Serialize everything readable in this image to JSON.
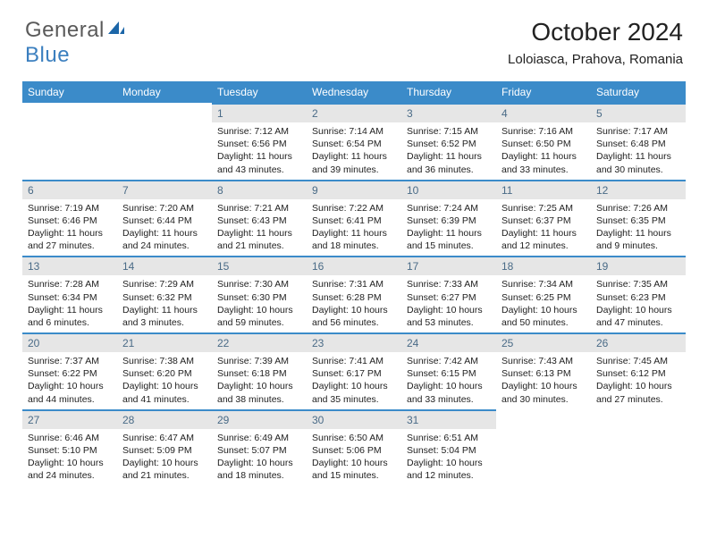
{
  "logo": {
    "part1": "General",
    "part2": "Blue"
  },
  "title": "October 2024",
  "location": "Loloiasca, Prahova, Romania",
  "headers": [
    "Sunday",
    "Monday",
    "Tuesday",
    "Wednesday",
    "Thursday",
    "Friday",
    "Saturday"
  ],
  "colors": {
    "header_bg": "#3b8bc9",
    "header_text": "#ffffff",
    "daynum_bg": "#e6e6e6",
    "daynum_border": "#3b8bc9",
    "daynum_text": "#4a6b87",
    "text": "#222222",
    "logo_gray": "#5a5a5a",
    "logo_blue": "#3b7fbf"
  },
  "weeks": [
    [
      null,
      null,
      {
        "n": "1",
        "sr": "Sunrise: 7:12 AM",
        "ss": "Sunset: 6:56 PM",
        "dl": "Daylight: 11 hours and 43 minutes."
      },
      {
        "n": "2",
        "sr": "Sunrise: 7:14 AM",
        "ss": "Sunset: 6:54 PM",
        "dl": "Daylight: 11 hours and 39 minutes."
      },
      {
        "n": "3",
        "sr": "Sunrise: 7:15 AM",
        "ss": "Sunset: 6:52 PM",
        "dl": "Daylight: 11 hours and 36 minutes."
      },
      {
        "n": "4",
        "sr": "Sunrise: 7:16 AM",
        "ss": "Sunset: 6:50 PM",
        "dl": "Daylight: 11 hours and 33 minutes."
      },
      {
        "n": "5",
        "sr": "Sunrise: 7:17 AM",
        "ss": "Sunset: 6:48 PM",
        "dl": "Daylight: 11 hours and 30 minutes."
      }
    ],
    [
      {
        "n": "6",
        "sr": "Sunrise: 7:19 AM",
        "ss": "Sunset: 6:46 PM",
        "dl": "Daylight: 11 hours and 27 minutes."
      },
      {
        "n": "7",
        "sr": "Sunrise: 7:20 AM",
        "ss": "Sunset: 6:44 PM",
        "dl": "Daylight: 11 hours and 24 minutes."
      },
      {
        "n": "8",
        "sr": "Sunrise: 7:21 AM",
        "ss": "Sunset: 6:43 PM",
        "dl": "Daylight: 11 hours and 21 minutes."
      },
      {
        "n": "9",
        "sr": "Sunrise: 7:22 AM",
        "ss": "Sunset: 6:41 PM",
        "dl": "Daylight: 11 hours and 18 minutes."
      },
      {
        "n": "10",
        "sr": "Sunrise: 7:24 AM",
        "ss": "Sunset: 6:39 PM",
        "dl": "Daylight: 11 hours and 15 minutes."
      },
      {
        "n": "11",
        "sr": "Sunrise: 7:25 AM",
        "ss": "Sunset: 6:37 PM",
        "dl": "Daylight: 11 hours and 12 minutes."
      },
      {
        "n": "12",
        "sr": "Sunrise: 7:26 AM",
        "ss": "Sunset: 6:35 PM",
        "dl": "Daylight: 11 hours and 9 minutes."
      }
    ],
    [
      {
        "n": "13",
        "sr": "Sunrise: 7:28 AM",
        "ss": "Sunset: 6:34 PM",
        "dl": "Daylight: 11 hours and 6 minutes."
      },
      {
        "n": "14",
        "sr": "Sunrise: 7:29 AM",
        "ss": "Sunset: 6:32 PM",
        "dl": "Daylight: 11 hours and 3 minutes."
      },
      {
        "n": "15",
        "sr": "Sunrise: 7:30 AM",
        "ss": "Sunset: 6:30 PM",
        "dl": "Daylight: 10 hours and 59 minutes."
      },
      {
        "n": "16",
        "sr": "Sunrise: 7:31 AM",
        "ss": "Sunset: 6:28 PM",
        "dl": "Daylight: 10 hours and 56 minutes."
      },
      {
        "n": "17",
        "sr": "Sunrise: 7:33 AM",
        "ss": "Sunset: 6:27 PM",
        "dl": "Daylight: 10 hours and 53 minutes."
      },
      {
        "n": "18",
        "sr": "Sunrise: 7:34 AM",
        "ss": "Sunset: 6:25 PM",
        "dl": "Daylight: 10 hours and 50 minutes."
      },
      {
        "n": "19",
        "sr": "Sunrise: 7:35 AM",
        "ss": "Sunset: 6:23 PM",
        "dl": "Daylight: 10 hours and 47 minutes."
      }
    ],
    [
      {
        "n": "20",
        "sr": "Sunrise: 7:37 AM",
        "ss": "Sunset: 6:22 PM",
        "dl": "Daylight: 10 hours and 44 minutes."
      },
      {
        "n": "21",
        "sr": "Sunrise: 7:38 AM",
        "ss": "Sunset: 6:20 PM",
        "dl": "Daylight: 10 hours and 41 minutes."
      },
      {
        "n": "22",
        "sr": "Sunrise: 7:39 AM",
        "ss": "Sunset: 6:18 PM",
        "dl": "Daylight: 10 hours and 38 minutes."
      },
      {
        "n": "23",
        "sr": "Sunrise: 7:41 AM",
        "ss": "Sunset: 6:17 PM",
        "dl": "Daylight: 10 hours and 35 minutes."
      },
      {
        "n": "24",
        "sr": "Sunrise: 7:42 AM",
        "ss": "Sunset: 6:15 PM",
        "dl": "Daylight: 10 hours and 33 minutes."
      },
      {
        "n": "25",
        "sr": "Sunrise: 7:43 AM",
        "ss": "Sunset: 6:13 PM",
        "dl": "Daylight: 10 hours and 30 minutes."
      },
      {
        "n": "26",
        "sr": "Sunrise: 7:45 AM",
        "ss": "Sunset: 6:12 PM",
        "dl": "Daylight: 10 hours and 27 minutes."
      }
    ],
    [
      {
        "n": "27",
        "sr": "Sunrise: 6:46 AM",
        "ss": "Sunset: 5:10 PM",
        "dl": "Daylight: 10 hours and 24 minutes."
      },
      {
        "n": "28",
        "sr": "Sunrise: 6:47 AM",
        "ss": "Sunset: 5:09 PM",
        "dl": "Daylight: 10 hours and 21 minutes."
      },
      {
        "n": "29",
        "sr": "Sunrise: 6:49 AM",
        "ss": "Sunset: 5:07 PM",
        "dl": "Daylight: 10 hours and 18 minutes."
      },
      {
        "n": "30",
        "sr": "Sunrise: 6:50 AM",
        "ss": "Sunset: 5:06 PM",
        "dl": "Daylight: 10 hours and 15 minutes."
      },
      {
        "n": "31",
        "sr": "Sunrise: 6:51 AM",
        "ss": "Sunset: 5:04 PM",
        "dl": "Daylight: 10 hours and 12 minutes."
      },
      null,
      null
    ]
  ]
}
